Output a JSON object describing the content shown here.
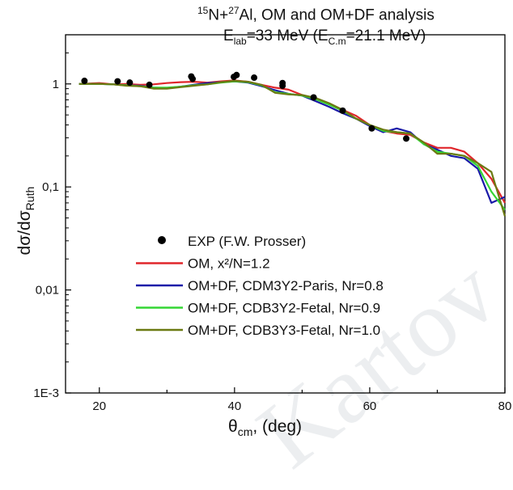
{
  "title_line1": {
    "pre": "15",
    "a": "N+",
    "b": "27",
    "c": "Al,  OM and OM+DF analysis"
  },
  "title_line2": {
    "a": "E",
    "b": "lab",
    "c": "=33 MeV (E",
    "d": "C.m",
    "e": "=21.1 MeV)"
  },
  "xaxis_label": {
    "a": "θ",
    "b": "cm",
    "c": ", (deg)"
  },
  "yaxis_label": {
    "a": "dσ/dσ",
    "b": "Ruth"
  },
  "watermark": "Kartov",
  "chart_data": {
    "type": "line",
    "xlim": [
      15,
      80
    ],
    "ylim": [
      0.001,
      3
    ],
    "yscale": "log",
    "x_ticks": [
      "20",
      "40",
      "60",
      "80"
    ],
    "y_ticks": [
      "1E-3",
      "0,01",
      "0,1",
      "1"
    ],
    "legend_position": "bottom-left",
    "series": [
      {
        "name": "EXP (F.W. Prosser)",
        "kind": "scatter",
        "color": "#000000",
        "points": [
          [
            17.8,
            1.07
          ],
          [
            22.7,
            1.06
          ],
          [
            24.5,
            1.03
          ],
          [
            27.4,
            0.98
          ],
          [
            33.6,
            1.18
          ],
          [
            33.8,
            1.12
          ],
          [
            39.9,
            1.17
          ],
          [
            40.3,
            1.22
          ],
          [
            42.9,
            1.15
          ],
          [
            47.1,
            0.96
          ],
          [
            47.1,
            1.02
          ],
          [
            51.7,
            0.74
          ],
          [
            56.0,
            0.55
          ],
          [
            60.3,
            0.37
          ],
          [
            65.4,
            0.295
          ]
        ]
      },
      {
        "name": "OM, x²/N=1.2",
        "kind": "line",
        "color": "#e0262b",
        "points": [
          [
            17,
            1.0
          ],
          [
            20,
            1.02
          ],
          [
            22,
            0.99
          ],
          [
            24,
            1.0
          ],
          [
            26,
            0.98
          ],
          [
            28,
            0.99
          ],
          [
            30,
            1.02
          ],
          [
            32,
            1.04
          ],
          [
            34,
            1.05
          ],
          [
            36,
            1.03
          ],
          [
            38,
            1.06
          ],
          [
            40,
            1.08
          ],
          [
            42,
            1.05
          ],
          [
            44,
            0.98
          ],
          [
            46,
            0.92
          ],
          [
            48,
            0.88
          ],
          [
            50,
            0.78
          ],
          [
            52,
            0.72
          ],
          [
            54,
            0.64
          ],
          [
            56,
            0.56
          ],
          [
            58,
            0.49
          ],
          [
            60,
            0.4
          ],
          [
            62,
            0.35
          ],
          [
            64,
            0.33
          ],
          [
            66,
            0.32
          ],
          [
            68,
            0.27
          ],
          [
            70,
            0.24
          ],
          [
            72,
            0.24
          ],
          [
            74,
            0.22
          ],
          [
            76,
            0.17
          ],
          [
            78,
            0.12
          ],
          [
            80,
            0.07
          ]
        ]
      },
      {
        "name": "OM+DF, CDM3Y2-Paris, Nr=0.8",
        "kind": "line",
        "color": "#1a1aa8",
        "points": [
          [
            17,
            1.0
          ],
          [
            20,
            1.0
          ],
          [
            22,
            0.99
          ],
          [
            24,
            0.97
          ],
          [
            26,
            0.96
          ],
          [
            28,
            0.92
          ],
          [
            30,
            0.91
          ],
          [
            32,
            0.94
          ],
          [
            34,
            0.98
          ],
          [
            36,
            1.02
          ],
          [
            38,
            1.04
          ],
          [
            40,
            1.06
          ],
          [
            42,
            1.03
          ],
          [
            44,
            0.95
          ],
          [
            46,
            0.87
          ],
          [
            48,
            0.8
          ],
          [
            50,
            0.77
          ],
          [
            52,
            0.68
          ],
          [
            54,
            0.6
          ],
          [
            56,
            0.52
          ],
          [
            58,
            0.46
          ],
          [
            60,
            0.39
          ],
          [
            62,
            0.34
          ],
          [
            64,
            0.37
          ],
          [
            66,
            0.34
          ],
          [
            68,
            0.26
          ],
          [
            70,
            0.23
          ],
          [
            72,
            0.2
          ],
          [
            74,
            0.19
          ],
          [
            76,
            0.15
          ],
          [
            78,
            0.07
          ],
          [
            80,
            0.08
          ]
        ]
      },
      {
        "name": "OM+DF, CDB3Y2-Fetal, Nr=0.9",
        "kind": "line",
        "color": "#33d633",
        "points": [
          [
            17,
            1.0
          ],
          [
            20,
            1.0
          ],
          [
            22,
            0.99
          ],
          [
            24,
            0.97
          ],
          [
            26,
            0.95
          ],
          [
            28,
            0.92
          ],
          [
            30,
            0.92
          ],
          [
            32,
            0.94
          ],
          [
            34,
            0.97
          ],
          [
            36,
            0.99
          ],
          [
            38,
            1.03
          ],
          [
            40,
            1.06
          ],
          [
            42,
            1.04
          ],
          [
            44,
            0.97
          ],
          [
            46,
            0.83
          ],
          [
            48,
            0.8
          ],
          [
            50,
            0.77
          ],
          [
            52,
            0.71
          ],
          [
            54,
            0.63
          ],
          [
            56,
            0.55
          ],
          [
            58,
            0.46
          ],
          [
            60,
            0.4
          ],
          [
            62,
            0.35
          ],
          [
            64,
            0.34
          ],
          [
            66,
            0.33
          ],
          [
            68,
            0.26
          ],
          [
            70,
            0.22
          ],
          [
            72,
            0.21
          ],
          [
            74,
            0.2
          ],
          [
            76,
            0.16
          ],
          [
            78,
            0.09
          ],
          [
            80,
            0.06
          ]
        ]
      },
      {
        "name": "OM+DF, CDB3Y3-Fetal, Nr=1.0",
        "kind": "line",
        "color": "#6b7a12",
        "points": [
          [
            17,
            1.0
          ],
          [
            20,
            1.0
          ],
          [
            22,
            0.99
          ],
          [
            24,
            0.96
          ],
          [
            26,
            0.95
          ],
          [
            28,
            0.9
          ],
          [
            30,
            0.9
          ],
          [
            32,
            0.93
          ],
          [
            34,
            0.96
          ],
          [
            36,
            0.99
          ],
          [
            38,
            1.04
          ],
          [
            40,
            1.07
          ],
          [
            42,
            1.05
          ],
          [
            44,
            0.98
          ],
          [
            46,
            0.82
          ],
          [
            48,
            0.79
          ],
          [
            50,
            0.78
          ],
          [
            52,
            0.73
          ],
          [
            54,
            0.65
          ],
          [
            56,
            0.56
          ],
          [
            58,
            0.46
          ],
          [
            60,
            0.4
          ],
          [
            62,
            0.36
          ],
          [
            64,
            0.34
          ],
          [
            66,
            0.33
          ],
          [
            68,
            0.27
          ],
          [
            70,
            0.21
          ],
          [
            72,
            0.21
          ],
          [
            74,
            0.2
          ],
          [
            76,
            0.17
          ],
          [
            78,
            0.14
          ],
          [
            80,
            0.052
          ]
        ]
      }
    ]
  }
}
